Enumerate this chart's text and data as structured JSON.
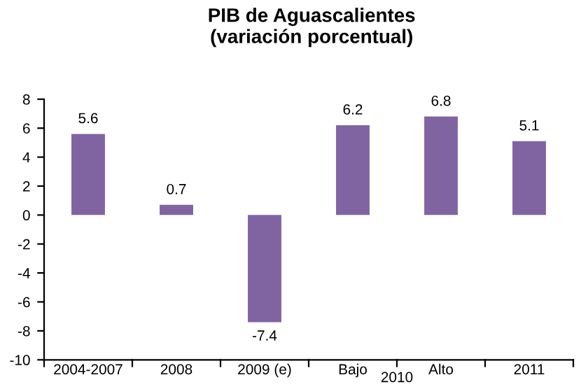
{
  "chart_data": {
    "type": "bar",
    "title": "PIB de Aguascalientes\n(variación porcentual)",
    "categories": [
      "2004-2007",
      "2008",
      "2009 (e)",
      "Bajo",
      "Alto",
      "2011"
    ],
    "values": [
      5.6,
      0.7,
      -7.4,
      6.2,
      6.8,
      5.1
    ],
    "color": "#8064a2",
    "data_labels": true,
    "ylim": [
      -10,
      8
    ],
    "yticks": [
      -10,
      -8,
      -6,
      -4,
      -2,
      0,
      2,
      4,
      6,
      8
    ],
    "grid": false,
    "annotations": [
      "2010"
    ]
  }
}
